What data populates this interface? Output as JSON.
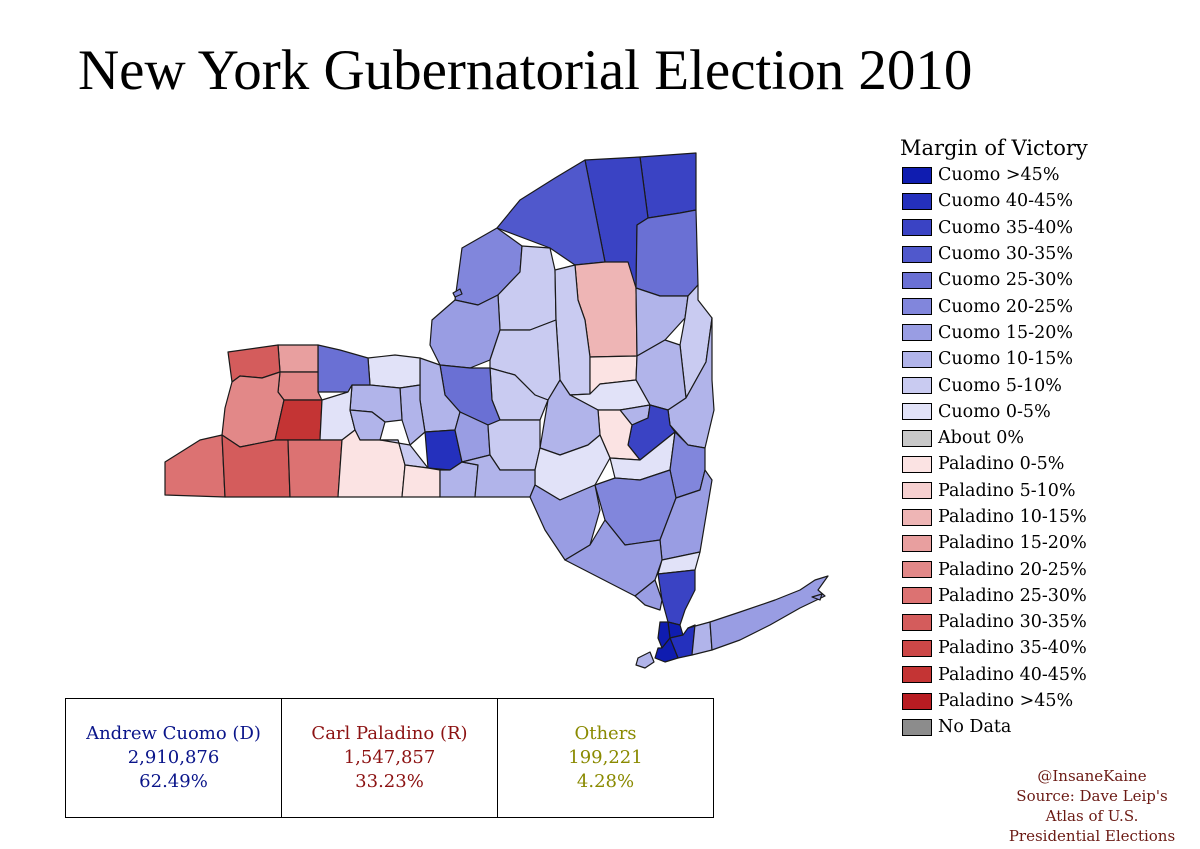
{
  "title": "New York Gubernatorial Election 2010",
  "legend": {
    "title": "Margin of Victory",
    "items": [
      {
        "label": "Cuomo >45%",
        "color": "#0f1cb0"
      },
      {
        "label": "Cuomo 40-45%",
        "color": "#2430bd"
      },
      {
        "label": "Cuomo 35-40%",
        "color": "#3a43c4"
      },
      {
        "label": "Cuomo 30-35%",
        "color": "#5058cc"
      },
      {
        "label": "Cuomo 25-30%",
        "color": "#6a70d4"
      },
      {
        "label": "Cuomo 20-25%",
        "color": "#8186dc"
      },
      {
        "label": "Cuomo 15-20%",
        "color": "#999de3"
      },
      {
        "label": "Cuomo 10-15%",
        "color": "#b1b4ea"
      },
      {
        "label": "Cuomo 5-10%",
        "color": "#c9cbf1"
      },
      {
        "label": "Cuomo 0-5%",
        "color": "#e1e2f8"
      },
      {
        "label": "About 0%",
        "color": "#c8c8c8"
      },
      {
        "label": "Paladino 0-5%",
        "color": "#fbe3e3"
      },
      {
        "label": "Paladino 5-10%",
        "color": "#f6d0d0"
      },
      {
        "label": "Paladino 10-15%",
        "color": "#eeb5b5"
      },
      {
        "label": "Paladino 15-20%",
        "color": "#e89f9f"
      },
      {
        "label": "Paladino 20-25%",
        "color": "#e28888"
      },
      {
        "label": "Paladino 25-30%",
        "color": "#dc7272"
      },
      {
        "label": "Paladino 30-35%",
        "color": "#d45c5c"
      },
      {
        "label": "Paladino 35-40%",
        "color": "#cc4747"
      },
      {
        "label": "Paladino 40-45%",
        "color": "#c43434"
      },
      {
        "label": "Paladino >45%",
        "color": "#b81c22"
      },
      {
        "label": "No Data",
        "color": "#8c8c8c"
      }
    ]
  },
  "results": [
    {
      "name": "Andrew Cuomo (D)",
      "votes": "2,910,876",
      "pct": "62.49%",
      "color": "#0a158a"
    },
    {
      "name": "Carl Paladino (R)",
      "votes": "1,547,857",
      "pct": "33.23%",
      "color": "#8c1212"
    },
    {
      "name": "Others",
      "votes": "199,221",
      "pct": "4.28%",
      "color": "#8a8a00"
    }
  ],
  "credit": {
    "handle": "@InsaneKaine",
    "source_1": "Source: Dave Leip's",
    "source_2": "Atlas of U.S.",
    "source_3": "Presidential Elections"
  },
  "counties": [
    {
      "name": "clinton",
      "color": "#3a43c4"
    },
    {
      "name": "franklin",
      "color": "#3a43c4"
    },
    {
      "name": "st-lawrence",
      "color": "#5058cc"
    },
    {
      "name": "essex",
      "color": "#6a70d4"
    },
    {
      "name": "jefferson",
      "color": "#8186dc"
    },
    {
      "name": "lewis",
      "color": "#c9cbf1"
    },
    {
      "name": "hamilton",
      "color": "#eeb5b5"
    },
    {
      "name": "warren",
      "color": "#b1b4ea"
    },
    {
      "name": "washington",
      "color": "#c9cbf1"
    },
    {
      "name": "herkimer",
      "color": "#c9cbf1"
    },
    {
      "name": "oswego",
      "color": "#999de3"
    },
    {
      "name": "oneida",
      "color": "#c9cbf1"
    },
    {
      "name": "fulton",
      "color": "#fbe3e3"
    },
    {
      "name": "saratoga",
      "color": "#b1b4ea"
    },
    {
      "name": "montgomery",
      "color": "#e1e2f8"
    },
    {
      "name": "schenectady",
      "color": "#b1b4ea"
    },
    {
      "name": "rensselaer",
      "color": "#b1b4ea"
    },
    {
      "name": "albany",
      "color": "#3a43c4"
    },
    {
      "name": "schoharie",
      "color": "#fbe3e3"
    },
    {
      "name": "otsego",
      "color": "#b1b4ea"
    },
    {
      "name": "madison",
      "color": "#c9cbf1"
    },
    {
      "name": "onondaga",
      "color": "#6a70d4"
    },
    {
      "name": "cayuga",
      "color": "#b1b4ea"
    },
    {
      "name": "wayne",
      "color": "#e1e2f8"
    },
    {
      "name": "seneca",
      "color": "#b1b4ea"
    },
    {
      "name": "ontario",
      "color": "#b1b4ea"
    },
    {
      "name": "monroe",
      "color": "#6a70d4"
    },
    {
      "name": "orleans",
      "color": "#e89f9f"
    },
    {
      "name": "niagara",
      "color": "#d45c5c"
    },
    {
      "name": "genesee",
      "color": "#e28888"
    },
    {
      "name": "erie",
      "color": "#e28888"
    },
    {
      "name": "wyoming",
      "color": "#c43434"
    },
    {
      "name": "livingston",
      "color": "#e1e2f8"
    },
    {
      "name": "yates",
      "color": "#b1b4ea"
    },
    {
      "name": "tompkins",
      "color": "#2430bd"
    },
    {
      "name": "cortland",
      "color": "#999de3"
    },
    {
      "name": "chenango",
      "color": "#c9cbf1"
    },
    {
      "name": "delaware",
      "color": "#e1e2f8"
    },
    {
      "name": "greene",
      "color": "#e1e2f8"
    },
    {
      "name": "columbia",
      "color": "#8186dc"
    },
    {
      "name": "chautauqua",
      "color": "#dc7272"
    },
    {
      "name": "cattaraugus",
      "color": "#d45c5c"
    },
    {
      "name": "allegany",
      "color": "#dc7272"
    },
    {
      "name": "steuben",
      "color": "#fbe3e3"
    },
    {
      "name": "schuyler",
      "color": "#c9cbf1"
    },
    {
      "name": "chemung",
      "color": "#fbe3e3"
    },
    {
      "name": "tioga",
      "color": "#b1b4ea"
    },
    {
      "name": "broome",
      "color": "#b1b4ea"
    },
    {
      "name": "sullivan",
      "color": "#999de3"
    },
    {
      "name": "ulster",
      "color": "#8186dc"
    },
    {
      "name": "dutchess",
      "color": "#999de3"
    },
    {
      "name": "orange",
      "color": "#999de3"
    },
    {
      "name": "putnam",
      "color": "#e1e2f8"
    },
    {
      "name": "rockland",
      "color": "#999de3"
    },
    {
      "name": "westchester",
      "color": "#3a43c4"
    },
    {
      "name": "bronx",
      "color": "#0f1cb0"
    },
    {
      "name": "manhattan",
      "color": "#0f1cb0"
    },
    {
      "name": "queens",
      "color": "#2430bd"
    },
    {
      "name": "brooklyn",
      "color": "#0f1cb0"
    },
    {
      "name": "staten-island",
      "color": "#b1b4ea"
    },
    {
      "name": "nassau",
      "color": "#b1b4ea"
    },
    {
      "name": "suffolk",
      "color": "#999de3"
    }
  ]
}
